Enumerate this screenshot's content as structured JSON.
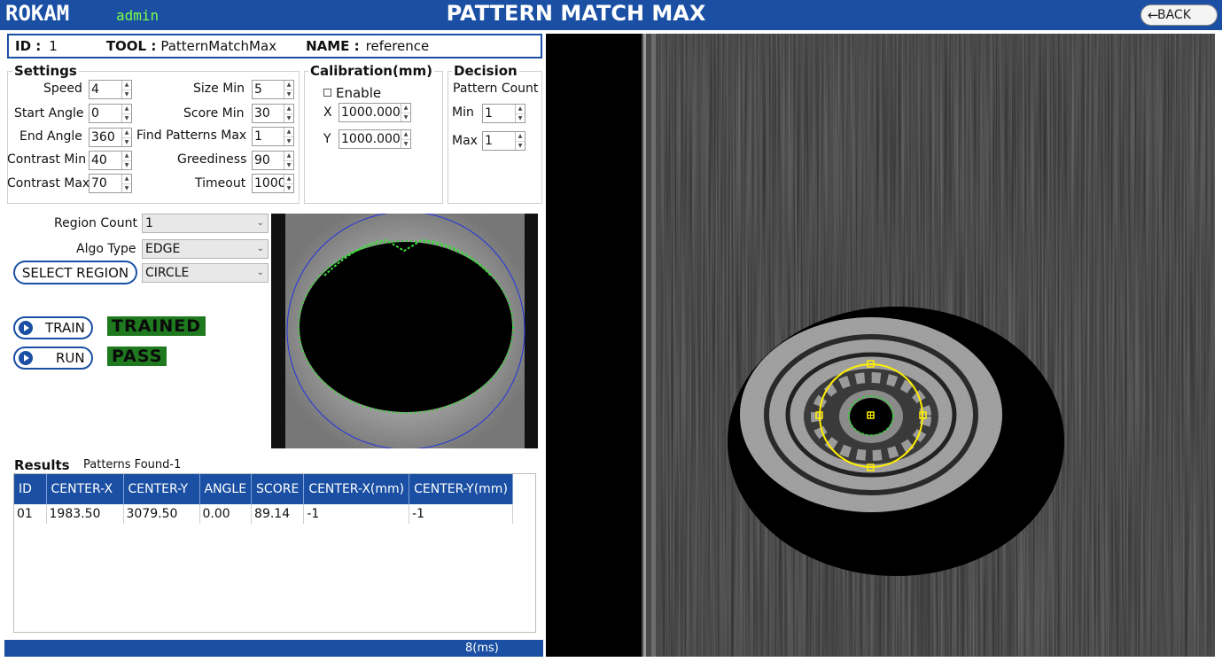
{
  "header": {
    "logo": "ROKAM",
    "user": "admin",
    "title": "PATTERN MATCH MAX",
    "back_label": "BACK",
    "back_icon": "arrow-left-icon"
  },
  "tool_info": {
    "id_label": "ID :",
    "id_value": "1",
    "tool_label": "TOOL :",
    "tool_value": "PatternMatchMax",
    "name_label": "NAME :",
    "name_value": "reference"
  },
  "settings": {
    "title": "Settings",
    "speed": {
      "label": "Speed",
      "value": "4"
    },
    "start_angle": {
      "label": "Start Angle",
      "value": "0"
    },
    "end_angle": {
      "label": "End Angle",
      "value": "360"
    },
    "contrast_min": {
      "label": "Contrast Min",
      "value": "40"
    },
    "contrast_max": {
      "label": "Contrast Max",
      "value": "70"
    },
    "size_min": {
      "label": "Size Min",
      "value": "5"
    },
    "score_min": {
      "label": "Score Min",
      "value": "30"
    },
    "find_patterns_max": {
      "label": "Find Patterns Max",
      "value": "1"
    },
    "greediness": {
      "label": "Greediness",
      "value": "90"
    },
    "timeout": {
      "label": "Timeout",
      "value": "1000"
    }
  },
  "calibration": {
    "title": "Calibration(mm)",
    "enable_label": "Enable",
    "x_label": "X",
    "x_value": "1000.000",
    "y_label": "Y",
    "y_value": "1000.000"
  },
  "decision": {
    "title": "Decision",
    "subtitle": "Pattern Count",
    "min_label": "Min",
    "min_value": "1",
    "max_label": "Max",
    "max_value": "1"
  },
  "region": {
    "count_label": "Region Count",
    "count_value": "1",
    "algo_label": "Algo Type",
    "algo_value": "EDGE",
    "select_label": "SELECT REGION",
    "shape_value": "CIRCLE"
  },
  "actions": {
    "train_label": "TRAIN",
    "run_label": "RUN",
    "train_status": "TRAINED",
    "run_status": "PASS"
  },
  "results": {
    "title": "Results",
    "patterns_found": "Patterns Found-1",
    "columns": [
      "ID",
      "CENTER-X",
      "CENTER-Y",
      "ANGLE",
      "SCORE",
      "CENTER-X(mm)",
      "CENTER-Y(mm)"
    ],
    "rows": [
      [
        "01",
        "1983.50",
        "3079.50",
        "0.00",
        "89.14",
        "-1",
        "-1"
      ]
    ]
  },
  "footer": {
    "time": "8(ms)"
  },
  "colors": {
    "accent": "#1a4fa3",
    "pass": "#1f7a1f",
    "user": "#7cff4a",
    "overlay_edge": "#2bd62b",
    "overlay_region": "#ffee00"
  }
}
